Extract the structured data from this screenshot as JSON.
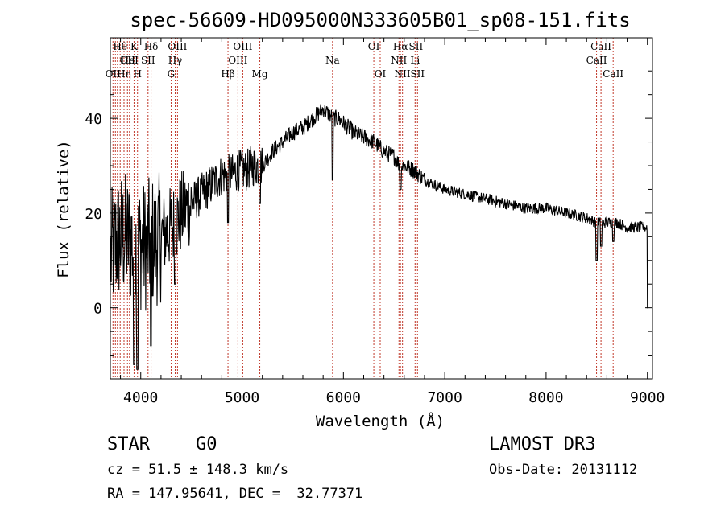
{
  "chart_data": {
    "type": "line",
    "title": "spec-56609-HD095000N333605B01_sp08-151.fits",
    "xlabel": "Wavelength (Å)",
    "ylabel": "Flux (relative)",
    "xlim": [
      3700,
      9050
    ],
    "ylim": [
      -15,
      57
    ],
    "xticks": [
      4000,
      5000,
      6000,
      7000,
      8000,
      9000
    ],
    "yticks": [
      0,
      20,
      40
    ],
    "spectrum": {
      "name": "Flux",
      "anchors_x": [
        3700,
        3720,
        3760,
        3800,
        3850,
        3900,
        3950,
        4000,
        4050,
        4100,
        4150,
        4200,
        4250,
        4300,
        4350,
        4400,
        4450,
        4500,
        4550,
        4600,
        4650,
        4700,
        4750,
        4800,
        4850,
        4900,
        4950,
        5000,
        5050,
        5100,
        5150,
        5200,
        5300,
        5400,
        5500,
        5600,
        5700,
        5750,
        5800,
        5850,
        5900,
        5950,
        6000,
        6050,
        6100,
        6200,
        6300,
        6400,
        6500,
        6560,
        6600,
        6700,
        6800,
        6900,
        7000,
        7200,
        7400,
        7600,
        7800,
        8000,
        8200,
        8400,
        8500,
        8600,
        8700,
        8800,
        8900,
        9000
      ],
      "anchors_y": [
        10,
        12,
        14,
        15,
        15,
        14,
        13,
        13,
        13,
        14,
        14,
        15,
        16,
        17,
        18,
        20,
        21,
        22,
        23,
        24,
        25,
        26,
        27,
        28,
        28,
        28,
        29,
        29,
        29,
        30,
        30,
        30,
        33,
        35,
        37,
        38,
        40,
        41,
        42,
        41,
        40,
        40,
        39,
        38,
        37,
        36,
        35,
        33,
        32,
        30,
        30,
        29,
        27,
        26,
        25,
        24,
        23,
        22,
        21,
        21,
        20,
        19,
        18,
        18,
        18,
        17,
        17,
        17
      ],
      "noise_note": "strong scatter below 4500 Å, moderate elsewhere",
      "dips": [
        {
          "x": 3934,
          "y": -12
        },
        {
          "x": 3968,
          "y": -13
        },
        {
          "x": 4101,
          "y": -8
        },
        {
          "x": 4340,
          "y": 5
        },
        {
          "x": 4861,
          "y": 18
        },
        {
          "x": 5175,
          "y": 22
        },
        {
          "x": 5893,
          "y": 27
        },
        {
          "x": 6563,
          "y": 25
        },
        {
          "x": 8498,
          "y": 10
        },
        {
          "x": 8542,
          "y": 13
        },
        {
          "x": 8662,
          "y": 14
        }
      ]
    },
    "lines": [
      {
        "x": 3726,
        "rows": [
          {
            "label": "OII",
            "row": 2
          }
        ]
      },
      {
        "x": 3750,
        "rows": []
      },
      {
        "x": 3770,
        "rows": []
      },
      {
        "x": 3797,
        "rows": [
          {
            "label": "Hθ",
            "row": 0
          }
        ]
      },
      {
        "x": 3835,
        "rows": [
          {
            "label": "Hη",
            "row": 2
          }
        ]
      },
      {
        "x": 3869,
        "rows": [
          {
            "label": "OII",
            "row": 1
          }
        ]
      },
      {
        "x": 3889,
        "rows": [
          {
            "label": "HeI",
            "row": 1
          }
        ]
      },
      {
        "x": 3934,
        "rows": [
          {
            "label": "K",
            "row": 0
          }
        ]
      },
      {
        "x": 3968,
        "rows": [
          {
            "label": "H",
            "row": 2
          }
        ]
      },
      {
        "x": 4072,
        "rows": [
          {
            "label": "SII",
            "row": 1
          }
        ]
      },
      {
        "x": 4102,
        "rows": [
          {
            "label": "Hδ",
            "row": 0
          }
        ]
      },
      {
        "x": 4300,
        "rows": [
          {
            "label": "G",
            "row": 2
          }
        ]
      },
      {
        "x": 4340,
        "rows": [
          {
            "label": "Hγ",
            "row": 1
          }
        ]
      },
      {
        "x": 4363,
        "rows": [
          {
            "label": "OIII",
            "row": 0
          }
        ]
      },
      {
        "x": 4861,
        "rows": [
          {
            "label": "Hβ",
            "row": 2
          }
        ]
      },
      {
        "x": 4959,
        "rows": [
          {
            "label": "OIII",
            "row": 1
          }
        ]
      },
      {
        "x": 5007,
        "rows": [
          {
            "label": "OIII",
            "row": 0
          }
        ]
      },
      {
        "x": 5175,
        "rows": [
          {
            "label": "Mg",
            "row": 2
          }
        ]
      },
      {
        "x": 5893,
        "rows": [
          {
            "label": "Na",
            "row": 1
          }
        ]
      },
      {
        "x": 6300,
        "rows": [
          {
            "label": "OI",
            "row": 0
          }
        ]
      },
      {
        "x": 6363,
        "rows": [
          {
            "label": "OI",
            "row": 2
          }
        ]
      },
      {
        "x": 6548,
        "rows": [
          {
            "label": "NII",
            "row": 1
          }
        ]
      },
      {
        "x": 6563,
        "rows": [
          {
            "label": "Hα",
            "row": 0
          }
        ]
      },
      {
        "x": 6583,
        "rows": [
          {
            "label": "NII",
            "row": 2
          }
        ]
      },
      {
        "x": 6707,
        "rows": [
          {
            "label": "Li",
            "row": 1
          }
        ]
      },
      {
        "x": 6716,
        "rows": [
          {
            "label": "SII",
            "row": 0
          }
        ]
      },
      {
        "x": 6731,
        "rows": [
          {
            "label": "SII",
            "row": 2
          }
        ]
      },
      {
        "x": 8498,
        "rows": [
          {
            "label": "CaII",
            "row": 1
          }
        ]
      },
      {
        "x": 8542,
        "rows": [
          {
            "label": "CaII",
            "row": 0
          }
        ]
      },
      {
        "x": 8662,
        "rows": [
          {
            "label": "CaII",
            "row": 2
          }
        ]
      }
    ]
  },
  "info": {
    "object_type": "STAR",
    "subclass": "G0",
    "survey": "LAMOST DR3",
    "cz": "cz = 51.5 ± 148.3 km/s",
    "obs_date": "Obs-Date: 20131112",
    "coords": "RA = 147.95641, DEC =  32.77371"
  }
}
